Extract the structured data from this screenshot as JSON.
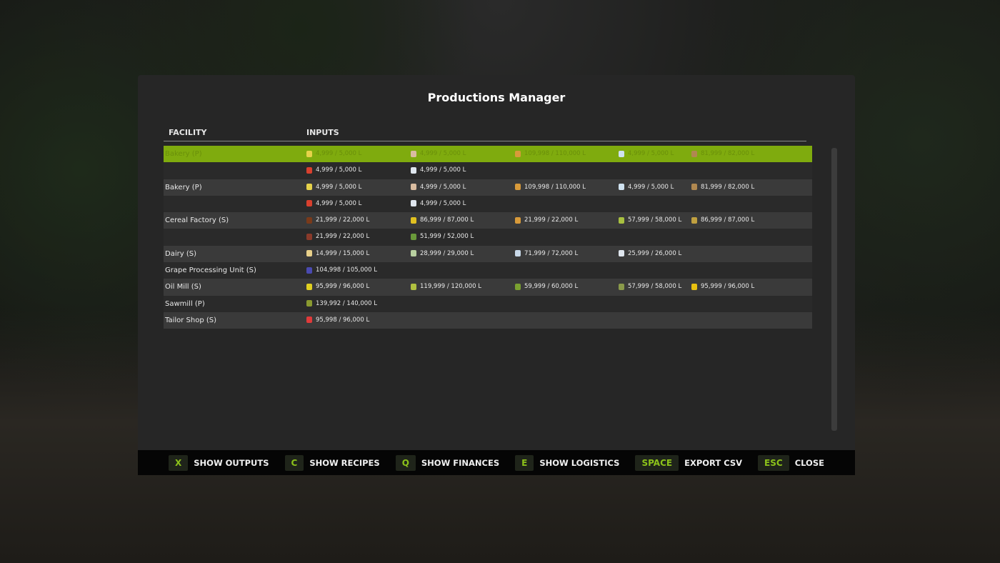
{
  "title": "Productions Manager",
  "headers": {
    "facility": "FACILITY",
    "inputs": "INPUTS"
  },
  "accent": "#7fab0e",
  "rows": [
    {
      "facility": "Bakery (P)",
      "selected": true,
      "inputs": [
        {
          "icon": "flour-icon",
          "color": "#e6d24a",
          "text": "4,999 / 5,000 L"
        },
        {
          "icon": "wheat-bag-icon",
          "color": "#d9bca0",
          "text": "4,999 / 5,000 L"
        },
        {
          "icon": "butter-icon",
          "color": "#d89a3a",
          "text": "109,998 / 110,000 L"
        },
        {
          "icon": "milk-icon",
          "color": "#cfe2f0",
          "text": "4,999 / 5,000 L"
        },
        {
          "icon": "crate-icon",
          "color": "#b08850",
          "text": "81,999 / 82,000 L"
        }
      ]
    },
    {
      "facility": "",
      "inputs": [
        {
          "icon": "strawberry-icon",
          "color": "#d8402e",
          "text": "4,999 / 5,000 L"
        },
        {
          "icon": "sugar-icon",
          "color": "#dfe6ee",
          "text": "4,999 / 5,000 L"
        }
      ]
    },
    {
      "facility": "Bakery (P)",
      "inputs": [
        {
          "icon": "flour-icon",
          "color": "#e6d24a",
          "text": "4,999 / 5,000 L"
        },
        {
          "icon": "wheat-bag-icon",
          "color": "#d9bca0",
          "text": "4,999 / 5,000 L"
        },
        {
          "icon": "butter-icon",
          "color": "#d89a3a",
          "text": "109,998 / 110,000 L"
        },
        {
          "icon": "milk-icon",
          "color": "#cfe2f0",
          "text": "4,999 / 5,000 L"
        },
        {
          "icon": "crate-icon",
          "color": "#b08850",
          "text": "81,999 / 82,000 L"
        }
      ]
    },
    {
      "facility": "",
      "inputs": [
        {
          "icon": "strawberry-icon",
          "color": "#d8402e",
          "text": "4,999 / 5,000 L"
        },
        {
          "icon": "sugar-icon",
          "color": "#dfe6ee",
          "text": "4,999 / 5,000 L"
        }
      ]
    },
    {
      "facility": "Cereal Factory (S)",
      "inputs": [
        {
          "icon": "chocolate-icon",
          "color": "#7a3a1a",
          "text": "21,999 / 22,000 L"
        },
        {
          "icon": "corn-icon",
          "color": "#e0c020",
          "text": "86,999 / 87,000 L"
        },
        {
          "icon": "butter-icon",
          "color": "#d89a3a",
          "text": "21,999 / 22,000 L"
        },
        {
          "icon": "oat-icon",
          "color": "#a8c040",
          "text": "57,999 / 58,000 L"
        },
        {
          "icon": "barley-icon",
          "color": "#c0a040",
          "text": "86,999 / 87,000 L"
        }
      ]
    },
    {
      "facility": "",
      "inputs": [
        {
          "icon": "raisin-icon",
          "color": "#8a3a2a",
          "text": "21,999 / 22,000 L"
        },
        {
          "icon": "grass-icon",
          "color": "#6a9a3a",
          "text": "51,999 / 52,000 L"
        }
      ]
    },
    {
      "facility": "Dairy (S)",
      "inputs": [
        {
          "icon": "milk-jug-icon",
          "color": "#e8d08a",
          "text": "14,999 / 15,000 L"
        },
        {
          "icon": "goat-milk-icon",
          "color": "#b8d0a0",
          "text": "28,999 / 29,000 L"
        },
        {
          "icon": "milk-can-icon",
          "color": "#c8d8e8",
          "text": "71,999 / 72,000 L"
        },
        {
          "icon": "sugar-icon",
          "color": "#dfe6ee",
          "text": "25,999 / 26,000 L"
        }
      ]
    },
    {
      "facility": "Grape Processing Unit (S)",
      "inputs": [
        {
          "icon": "grape-icon",
          "color": "#4a4ab0",
          "text": "104,998 / 105,000 L"
        }
      ]
    },
    {
      "facility": "Oil Mill (S)",
      "inputs": [
        {
          "icon": "canola-icon",
          "color": "#e0d020",
          "text": "95,999 / 96,000 L"
        },
        {
          "icon": "soybean-icon",
          "color": "#b0c040",
          "text": "119,999 / 120,000 L"
        },
        {
          "icon": "olive-icon",
          "color": "#7aa030",
          "text": "59,999 / 60,000 L"
        },
        {
          "icon": "oat-icon",
          "color": "#8a9a4a",
          "text": "57,999 / 58,000 L"
        },
        {
          "icon": "sunflower-icon",
          "color": "#e8c010",
          "text": "95,999 / 96,000 L"
        }
      ]
    },
    {
      "facility": "Sawmill (P)",
      "inputs": [
        {
          "icon": "wood-icon",
          "color": "#8a9a30",
          "text": "139,992 / 140,000 L"
        }
      ]
    },
    {
      "facility": "Tailor Shop (S)",
      "inputs": [
        {
          "icon": "fabric-icon",
          "color": "#e03a3a",
          "text": "95,998 / 96,000 L"
        }
      ]
    }
  ],
  "actions": [
    {
      "key": "X",
      "label": "SHOW OUTPUTS"
    },
    {
      "key": "C",
      "label": "SHOW RECIPES"
    },
    {
      "key": "Q",
      "label": "SHOW FINANCES"
    },
    {
      "key": "E",
      "label": "SHOW LOGISTICS"
    },
    {
      "key": "SPACE",
      "label": "EXPORT CSV"
    },
    {
      "key": "ESC",
      "label": "CLOSE"
    }
  ]
}
